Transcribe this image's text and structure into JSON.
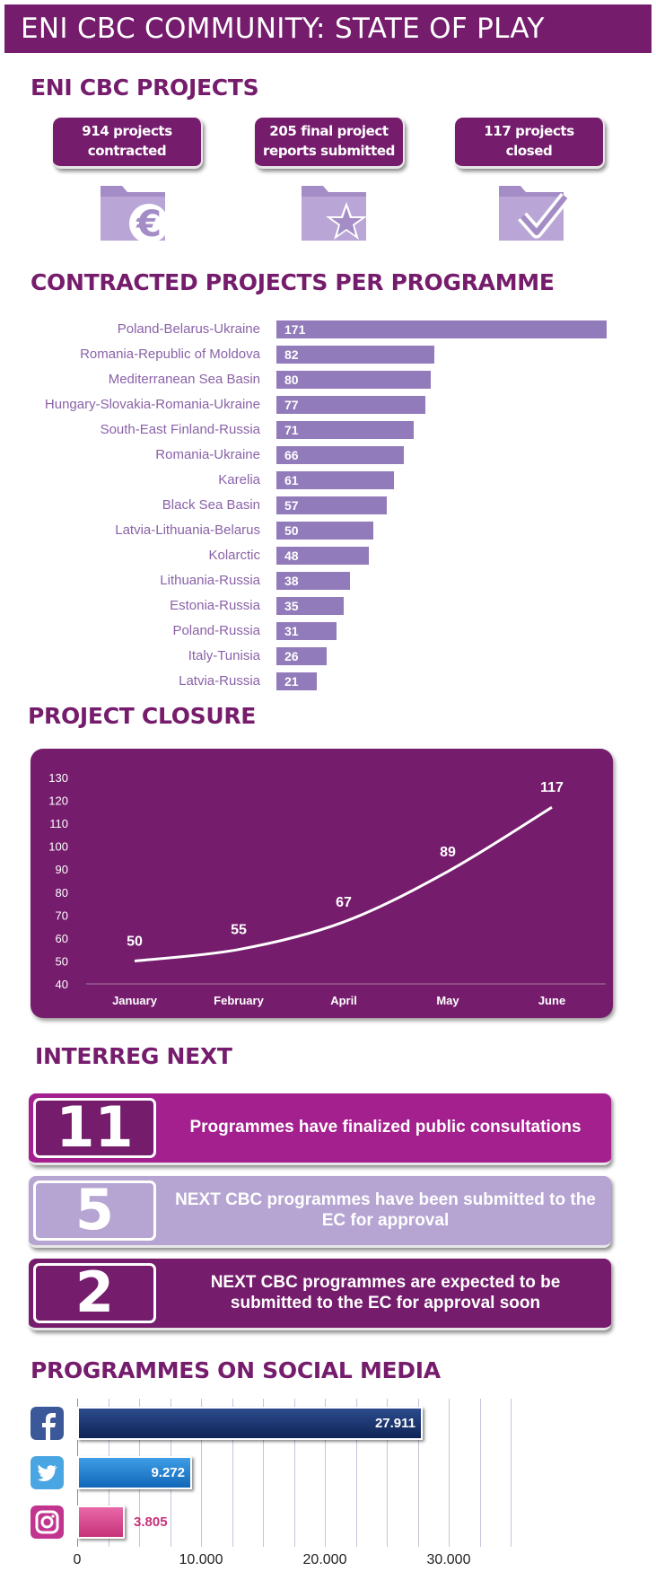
{
  "title": "ENI CBC COMMUNITY: STATE OF PLAY",
  "projects": {
    "heading": "ENI CBC PROJECTS",
    "stats": [
      {
        "line1": "914 projects",
        "line2": "contracted",
        "icon": "folder-euro-icon"
      },
      {
        "line1": "205 final project",
        "line2": "reports submitted",
        "icon": "folder-star-icon"
      },
      {
        "line1": "117 projects",
        "line2": "closed",
        "icon": "folder-check-icon"
      }
    ]
  },
  "colors": {
    "brand_purple": "#751c6c",
    "bar_purple": "#927bba",
    "label_purple": "#8a62a8",
    "icon_purple": "#a48cc6",
    "next_magenta": "#a3208e",
    "next_lavender": "#b6a5d2",
    "facebook_navy": "#172f6b",
    "twitter_blue": "#1a7fd1",
    "instagram_pink": "#d9438d"
  },
  "chart_data": [
    {
      "type": "bar",
      "orientation": "horizontal",
      "title": "CONTRACTED PROJECTS PER PROGRAMME",
      "categories": [
        "Poland-Belarus-Ukraine",
        "Romania-Republic of Moldova",
        "Mediterranean Sea Basin",
        "Hungary-Slovakia-Romania-Ukraine",
        "South-East Finland-Russia",
        "Romania-Ukraine",
        "Karelia",
        "Black Sea Basin",
        "Latvia-Lithuania-Belarus",
        "Kolarctic",
        "Lithuania-Russia",
        "Estonia-Russia",
        "Poland-Russia",
        "Italy-Tunisia",
        "Latvia-Russia"
      ],
      "values": [
        171,
        82,
        80,
        77,
        71,
        66,
        61,
        57,
        50,
        48,
        38,
        35,
        31,
        26,
        21
      ],
      "xlim": [
        0,
        171
      ],
      "grid": false
    },
    {
      "type": "line",
      "title": "PROJECT CLOSURE",
      "categories": [
        "January",
        "February",
        "April",
        "May",
        "June"
      ],
      "values": [
        50,
        55,
        67,
        89,
        117
      ],
      "ylim": [
        40,
        130
      ],
      "yticks": [
        130,
        120,
        110,
        100,
        90,
        80,
        70,
        60,
        50,
        40
      ],
      "grid": false
    },
    {
      "type": "bar",
      "orientation": "horizontal",
      "title": "PROGRAMMES ON SOCIAL MEDIA",
      "categories": [
        "facebook-icon",
        "twitter-icon",
        "instagram-icon"
      ],
      "values": [
        27911,
        9272,
        3805
      ],
      "value_labels": [
        "27.911",
        "9.272",
        "3.805"
      ],
      "xlim": [
        0,
        35000
      ],
      "xticks": [
        0,
        10000,
        20000,
        30000
      ],
      "xtick_labels": [
        "0",
        "10.000",
        "20.000",
        "30.000"
      ],
      "grid": true
    }
  ],
  "next": {
    "heading": "INTERREG NEXT",
    "items": [
      {
        "number": "11",
        "text": "Programmes have finalized public consultations"
      },
      {
        "number": "5",
        "text": "NEXT CBC programmes have been submitted to the EC for approval"
      },
      {
        "number": "2",
        "text": "NEXT CBC programmes are expected to be submitted to the EC for approval soon"
      }
    ]
  }
}
